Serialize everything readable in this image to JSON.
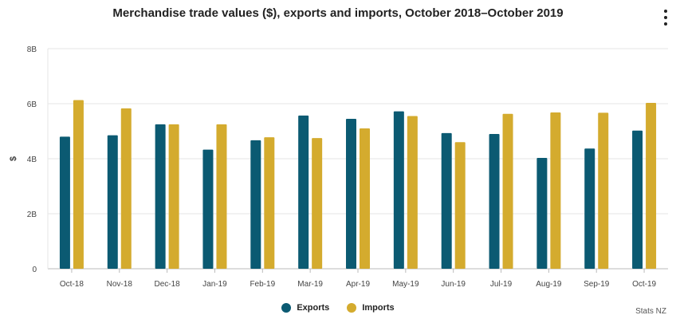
{
  "chart_data": {
    "type": "bar",
    "title": "Merchandise trade values ($), exports and imports, October 2018–October 2019",
    "xlabel": "",
    "ylabel": "$",
    "ylim": [
      0,
      8
    ],
    "y_ticks": [
      0,
      2,
      4,
      6,
      8
    ],
    "y_tick_labels": [
      "0",
      "2B",
      "4B",
      "6B",
      "8B"
    ],
    "categories": [
      "Oct-18",
      "Nov-18",
      "Dec-18",
      "Jan-19",
      "Feb-19",
      "Mar-19",
      "Apr-19",
      "May-19",
      "Jun-19",
      "Jul-19",
      "Aug-19",
      "Sep-19",
      "Oct-19"
    ],
    "series": [
      {
        "name": "Exports",
        "color": "#0b5a72",
        "values": [
          4.8,
          4.85,
          5.25,
          4.33,
          4.67,
          5.57,
          5.45,
          5.72,
          4.93,
          4.9,
          4.03,
          4.37,
          5.02
        ]
      },
      {
        "name": "Imports",
        "color": "#d4ab2e",
        "values": [
          6.13,
          5.83,
          5.25,
          5.25,
          4.78,
          4.75,
          5.1,
          5.55,
          4.6,
          5.63,
          5.68,
          5.67,
          6.03
        ]
      }
    ],
    "legend_position": "bottom-center",
    "source": "Stats NZ"
  },
  "menu_icon": "vertical-ellipsis-icon"
}
